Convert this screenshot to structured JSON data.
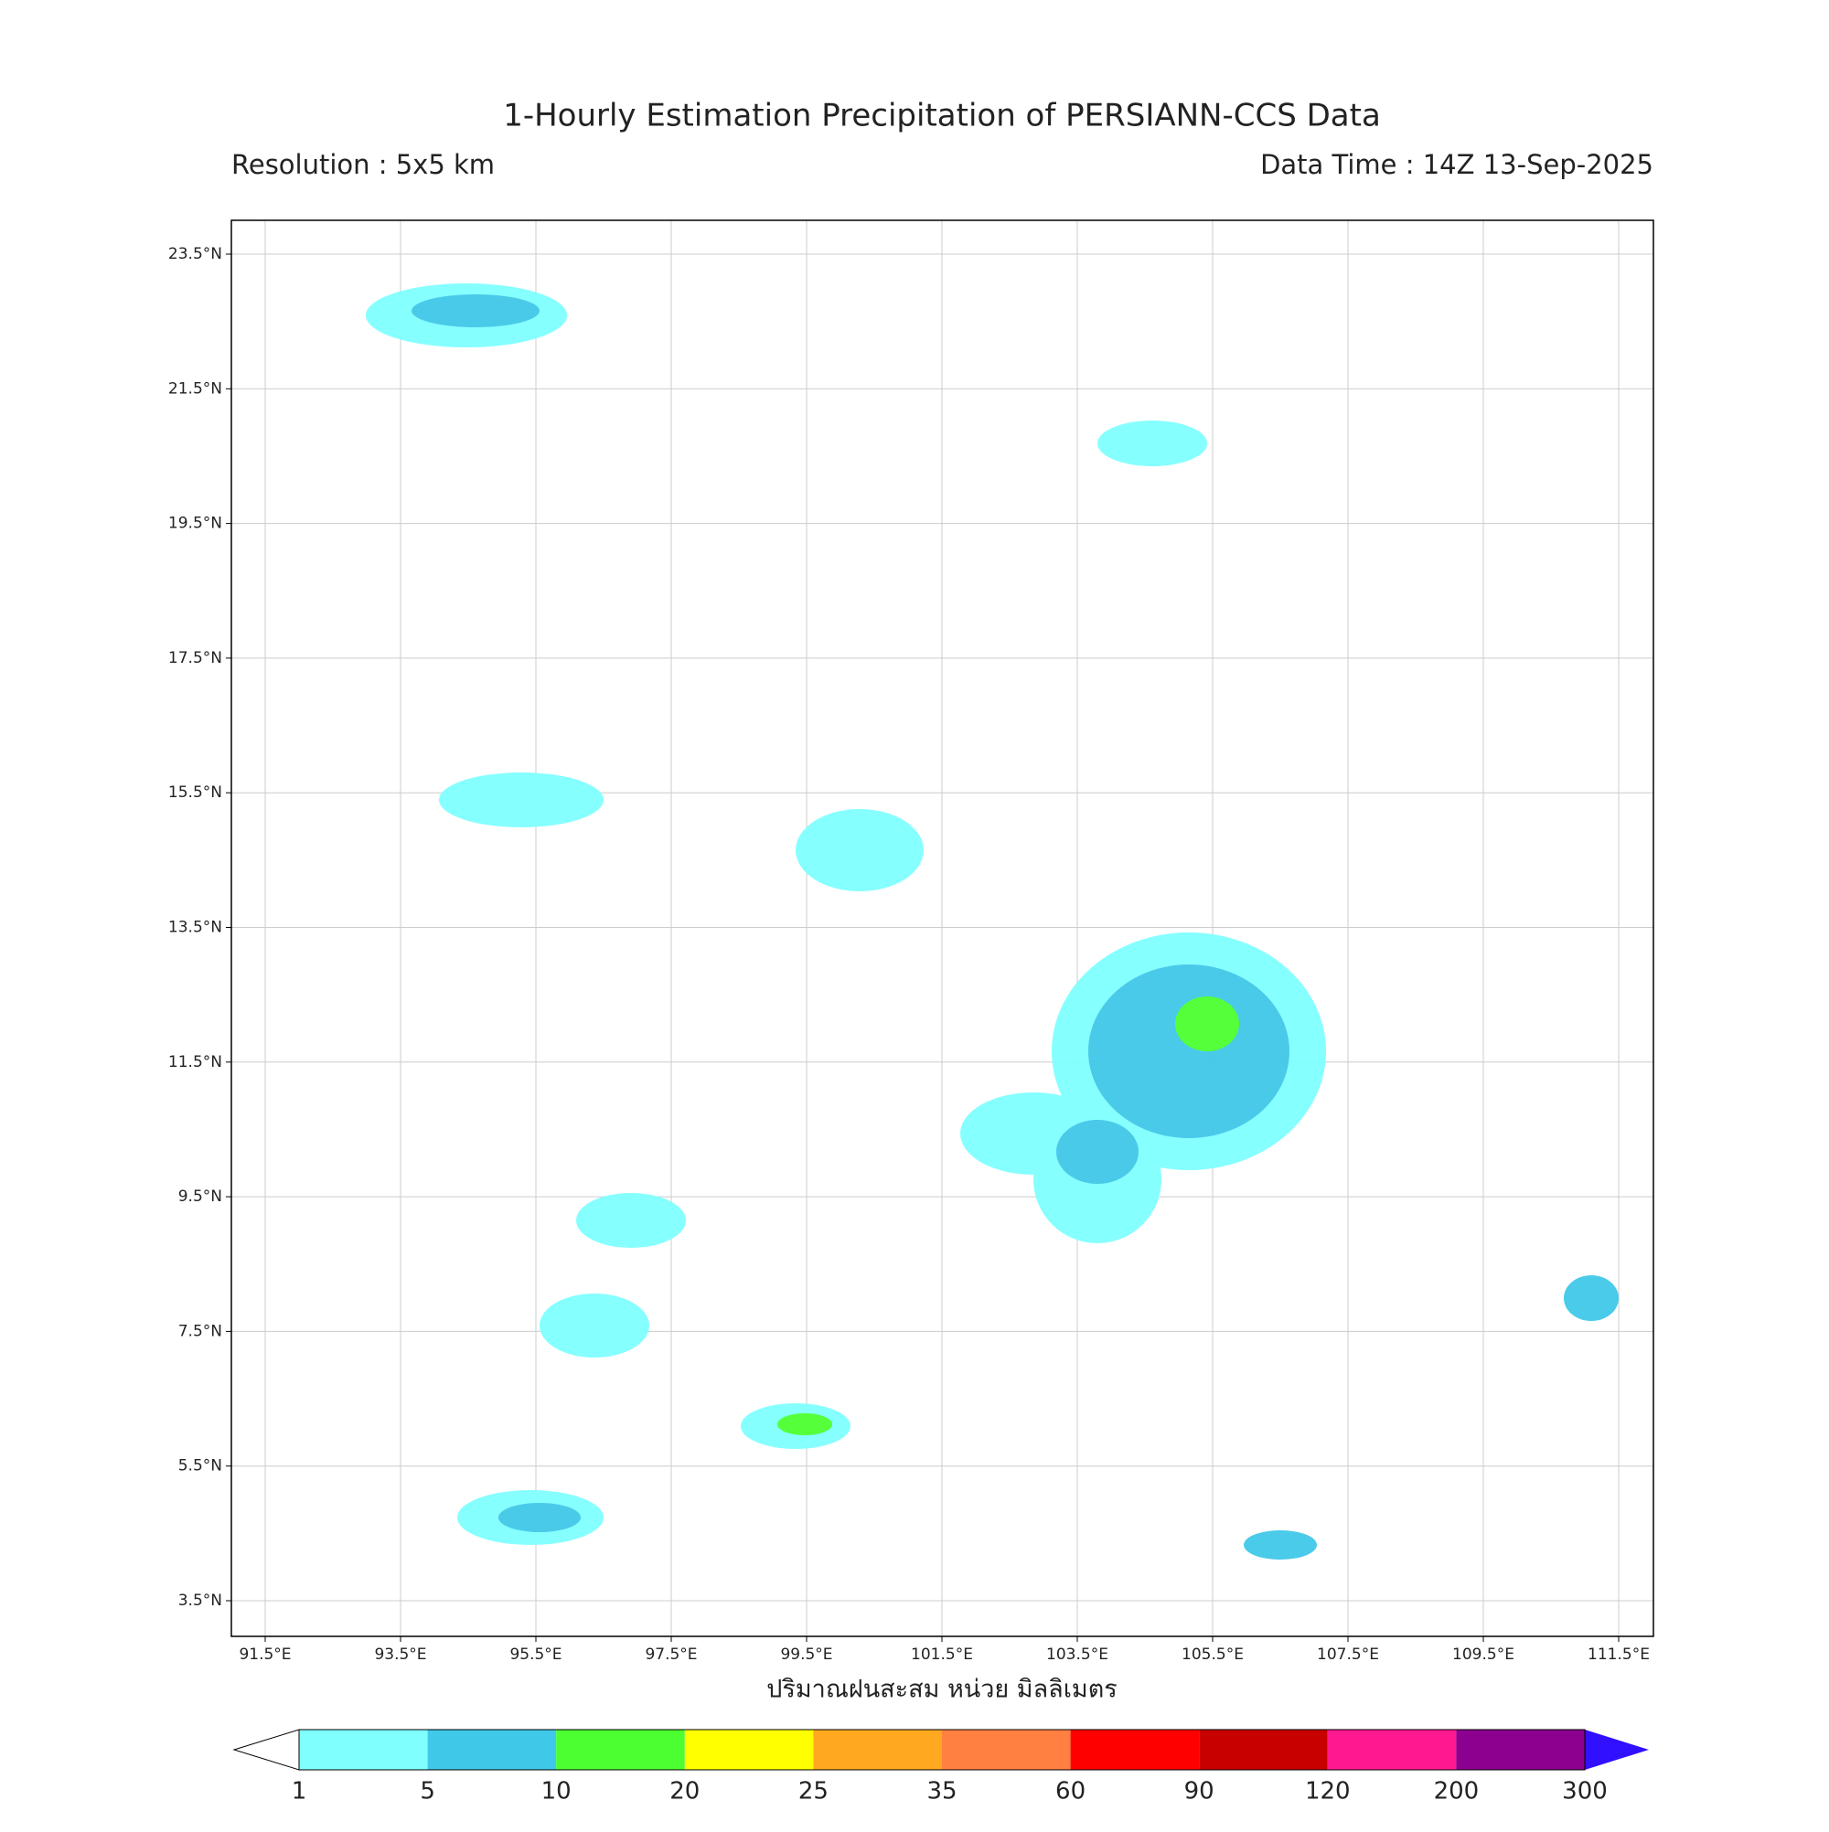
{
  "header": {
    "title": "1-Hourly Estimation Precipitation of PERSIANN-CCS Data",
    "resolution": "Resolution : 5x5 km",
    "data_time": "Data Time : 14Z 13-Sep-2025"
  },
  "map": {
    "lon_labels": [
      "91.5°E",
      "93.5°E",
      "95.5°E",
      "97.5°E",
      "99.5°E",
      "101.5°E",
      "103.5°E",
      "105.5°E",
      "107.5°E",
      "109.5°E",
      "111.5°E"
    ],
    "lat_labels": [
      "23.5°N",
      "21.5°N",
      "19.5°N",
      "17.5°N",
      "15.5°N",
      "13.5°N",
      "11.5°N",
      "9.5°N",
      "7.5°N",
      "5.5°N",
      "3.5°N"
    ],
    "x_label": "ปริมาณฝนสะสม หน่วย มิลลิเมตร"
  },
  "colorbar": {
    "levels": [
      1,
      5,
      10,
      20,
      25,
      35,
      60,
      90,
      120,
      200,
      300
    ],
    "colors": [
      "#80ffff",
      "#40c8e8",
      "#4cff30",
      "#ffff00",
      "#ffa820",
      "#ff8040",
      "#ff0000",
      "#c80000",
      "#ff1890",
      "#8c0090",
      "#3010ff"
    ]
  }
}
